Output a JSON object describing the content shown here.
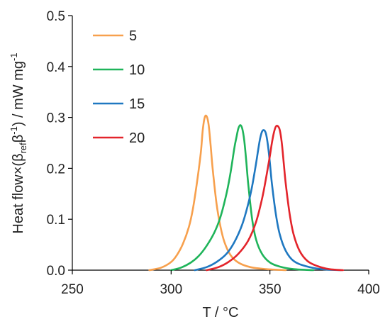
{
  "chart_data": {
    "type": "line",
    "xlabel": "T / °C",
    "ylabel_parts": {
      "a": "Heat flow×(β",
      "sub1": "ref",
      "b": "β",
      "sup1": "-1",
      "c": ") / mW mg",
      "sup2": "-1"
    },
    "xlim": [
      250,
      400
    ],
    "ylim": [
      0,
      0.5
    ],
    "xticks": [
      "250",
      "300",
      "350",
      "400"
    ],
    "yticks": [
      "0.0",
      "0.1",
      "0.2",
      "0.3",
      "0.4",
      "0.5"
    ],
    "grid": false,
    "legend_position": "top-left",
    "series": [
      {
        "name": "5",
        "color": "#F7A04D",
        "x": [
          289,
          295,
          300,
          303,
          306,
          309,
          311,
          313,
          315,
          316,
          317,
          318,
          319,
          320,
          321,
          323,
          325,
          327,
          330,
          334,
          340,
          348,
          358
        ],
        "y": [
          0.0,
          0.005,
          0.016,
          0.03,
          0.052,
          0.085,
          0.12,
          0.17,
          0.23,
          0.275,
          0.3,
          0.302,
          0.285,
          0.245,
          0.2,
          0.13,
          0.085,
          0.055,
          0.03,
          0.015,
          0.006,
          0.002,
          0.0
        ]
      },
      {
        "name": "10",
        "color": "#1FB45A",
        "x": [
          300,
          305,
          310,
          314,
          318,
          322,
          325,
          328,
          330,
          332,
          333,
          334,
          335,
          336,
          337,
          338,
          339,
          341,
          343,
          346,
          350,
          355,
          362,
          372
        ],
        "y": [
          0.0,
          0.005,
          0.015,
          0.028,
          0.048,
          0.075,
          0.105,
          0.15,
          0.19,
          0.24,
          0.26,
          0.278,
          0.285,
          0.278,
          0.255,
          0.215,
          0.17,
          0.1,
          0.06,
          0.032,
          0.015,
          0.007,
          0.002,
          0.0
        ]
      },
      {
        "name": "15",
        "color": "#1F78C1",
        "x": [
          312,
          318,
          323,
          328,
          332,
          336,
          339,
          341,
          343,
          344,
          345,
          346,
          347,
          348,
          349,
          350,
          351,
          353,
          355,
          358,
          362,
          368,
          376,
          386
        ],
        "y": [
          0.0,
          0.006,
          0.016,
          0.032,
          0.055,
          0.09,
          0.13,
          0.165,
          0.21,
          0.235,
          0.258,
          0.272,
          0.275,
          0.268,
          0.245,
          0.21,
          0.17,
          0.11,
          0.07,
          0.038,
          0.018,
          0.008,
          0.002,
          0.0
        ]
      },
      {
        "name": "20",
        "color": "#E3242B",
        "x": [
          318,
          324,
          329,
          334,
          339,
          343,
          346,
          348,
          350,
          351,
          352,
          353,
          354,
          355,
          356,
          357,
          358,
          360,
          362,
          365,
          369,
          374,
          380,
          387
        ],
        "y": [
          0.0,
          0.006,
          0.016,
          0.032,
          0.058,
          0.095,
          0.14,
          0.18,
          0.225,
          0.25,
          0.27,
          0.282,
          0.283,
          0.275,
          0.25,
          0.21,
          0.17,
          0.11,
          0.07,
          0.038,
          0.018,
          0.008,
          0.002,
          0.0
        ]
      }
    ]
  }
}
